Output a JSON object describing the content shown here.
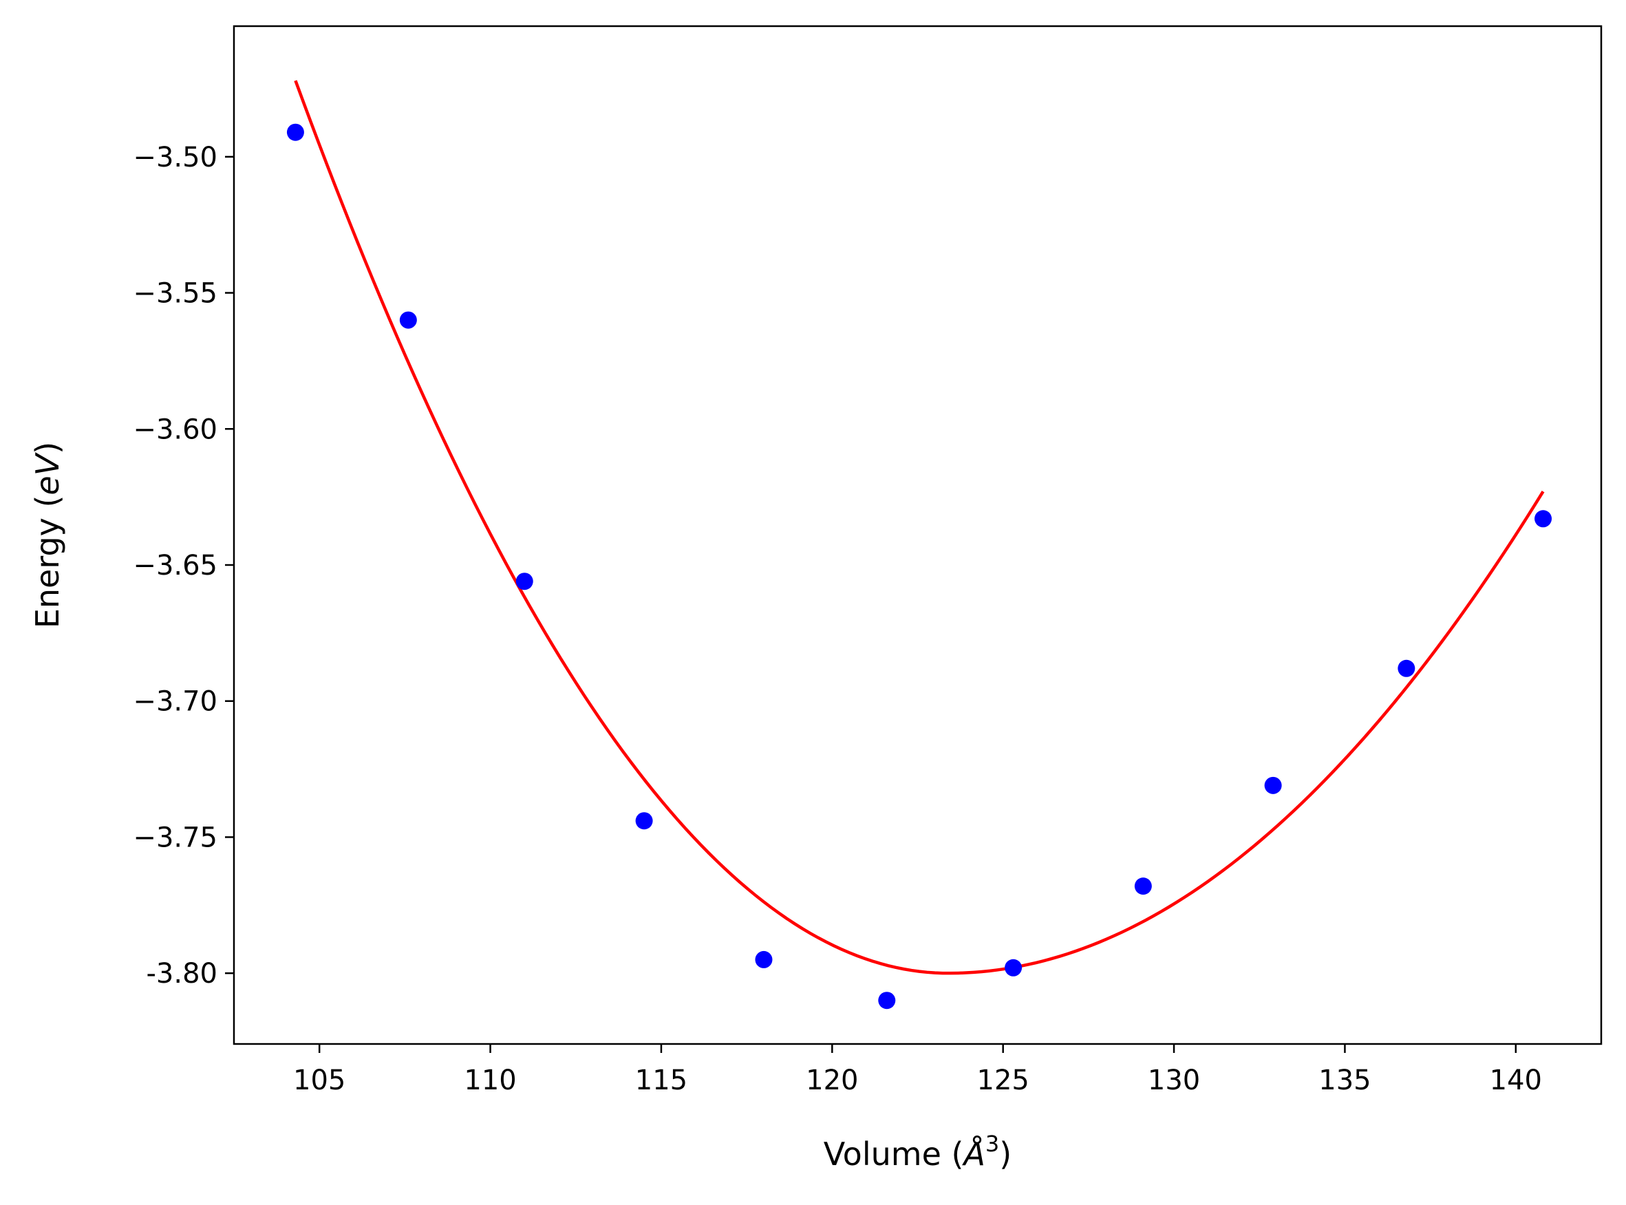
{
  "chart_data": {
    "type": "scatter",
    "title": "",
    "xlabel": "Volume (Å³)",
    "xlabel_parts": {
      "prefix": "Volume (",
      "symbol": "Å",
      "power": "3",
      "suffix": ")"
    },
    "ylabel": "Energy (eV)",
    "ylabel_parts": {
      "prefix": "Energy (",
      "unit": "eV",
      "suffix": ")"
    },
    "xlim": [
      102.5,
      142.5
    ],
    "ylim": [
      -3.826,
      -3.452
    ],
    "x_ticks": [
      105,
      110,
      115,
      120,
      125,
      130,
      135,
      140
    ],
    "x_tick_labels": [
      "105",
      "110",
      "115",
      "120",
      "125",
      "130",
      "135",
      "140"
    ],
    "y_ticks": [
      -3.5,
      -3.55,
      -3.6,
      -3.65,
      -3.7,
      -3.75,
      -3.8
    ],
    "y_tick_labels": [
      "−3.50",
      "−3.55",
      "−3.60",
      "−3.65",
      "−3.70",
      "−3.75",
      "-3.80"
    ],
    "grid": false,
    "legend": "none",
    "series": [
      {
        "kind": "scatter",
        "color": "#0000ff",
        "points": [
          {
            "x": 104.3,
            "y": -3.491
          },
          {
            "x": 107.6,
            "y": -3.56
          },
          {
            "x": 111.0,
            "y": -3.656
          },
          {
            "x": 114.5,
            "y": -3.744
          },
          {
            "x": 118.0,
            "y": -3.795
          },
          {
            "x": 121.6,
            "y": -3.81
          },
          {
            "x": 125.3,
            "y": -3.798
          },
          {
            "x": 129.1,
            "y": -3.768
          },
          {
            "x": 132.9,
            "y": -3.731
          },
          {
            "x": 136.8,
            "y": -3.688
          },
          {
            "x": 140.8,
            "y": -3.633
          }
        ]
      },
      {
        "kind": "fit-line",
        "color": "#ff0000",
        "x_range": [
          104.3,
          140.8
        ],
        "vertex": {
          "x": 123.4,
          "y": -3.8
        }
      }
    ]
  }
}
